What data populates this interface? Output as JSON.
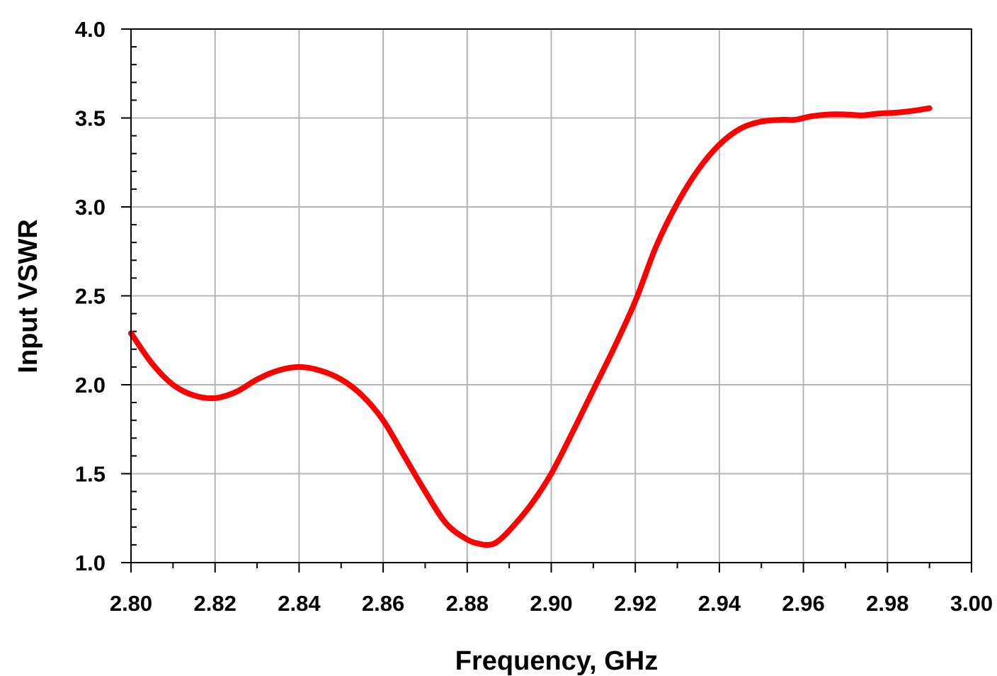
{
  "chart_data": {
    "type": "line",
    "title": "",
    "xlabel": "Frequency, GHz",
    "ylabel": "Input VSWR",
    "xlim": [
      2.8,
      3.0
    ],
    "ylim": [
      1.0,
      4.0
    ],
    "x_ticks": [
      "2.80",
      "2.82",
      "2.84",
      "2.86",
      "2.88",
      "2.90",
      "2.92",
      "2.94",
      "2.96",
      "2.98",
      "3.00"
    ],
    "y_ticks": [
      "1.0",
      "1.5",
      "2.0",
      "2.5",
      "3.0",
      "3.5",
      "4.0"
    ],
    "x_minor_step": 0.01,
    "y_minor_step": 0.1,
    "grid": true,
    "legend": "none",
    "colors": {
      "series": "#ff0000",
      "grid": "#b4b4b4",
      "axis": "#000000"
    },
    "series": [
      {
        "color": "#ff0000",
        "x": [
          2.8,
          2.805,
          2.81,
          2.815,
          2.82,
          2.825,
          2.83,
          2.835,
          2.84,
          2.845,
          2.85,
          2.855,
          2.86,
          2.865,
          2.87,
          2.875,
          2.88,
          2.883,
          2.885,
          2.887,
          2.89,
          2.895,
          2.9,
          2.905,
          2.91,
          2.915,
          2.92,
          2.925,
          2.93,
          2.935,
          2.94,
          2.945,
          2.95,
          2.955,
          2.958,
          2.962,
          2.966,
          2.97,
          2.974,
          2.978,
          2.982,
          2.986,
          2.99
        ],
        "y": [
          2.29,
          2.12,
          2.0,
          1.94,
          1.925,
          1.96,
          2.03,
          2.08,
          2.1,
          2.08,
          2.03,
          1.94,
          1.8,
          1.6,
          1.4,
          1.22,
          1.13,
          1.105,
          1.1,
          1.115,
          1.18,
          1.32,
          1.5,
          1.73,
          1.97,
          2.21,
          2.47,
          2.78,
          3.02,
          3.21,
          3.35,
          3.44,
          3.48,
          3.49,
          3.49,
          3.51,
          3.52,
          3.52,
          3.515,
          3.525,
          3.53,
          3.54,
          3.555
        ]
      }
    ]
  }
}
